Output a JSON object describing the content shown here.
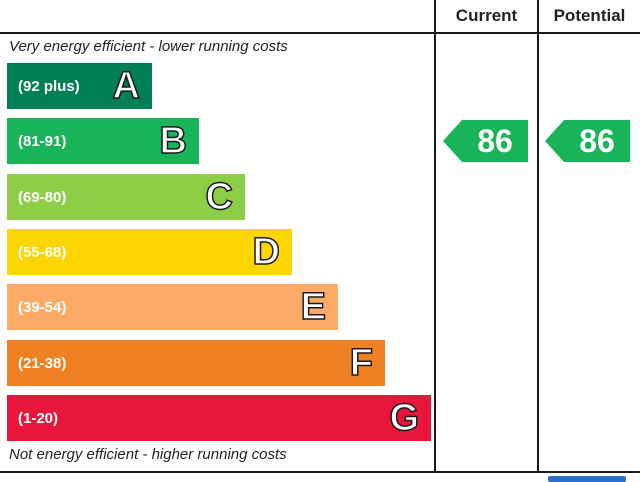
{
  "columns": {
    "current": "Current",
    "potential": "Potential"
  },
  "notes": {
    "top": "Very energy efficient - lower running costs",
    "bottom": "Not energy efficient - higher running costs"
  },
  "chart_data": {
    "type": "bar",
    "title": "",
    "categories": [
      "A",
      "B",
      "C",
      "D",
      "E",
      "F",
      "G"
    ],
    "ranges": [
      "(92 plus)",
      "(81-91)",
      "(69-80)",
      "(55-68)",
      "(39-54)",
      "(21-38)",
      "(1-20)"
    ],
    "values": [
      1,
      2,
      3,
      4,
      5,
      6,
      7
    ],
    "colors": [
      "#008054",
      "#19b459",
      "#8dce46",
      "#ffd500",
      "#fcaa65",
      "#ef8023",
      "#e9153b"
    ],
    "current": {
      "value": "86",
      "band": "B",
      "color": "#19b459"
    },
    "potential": {
      "value": "86",
      "band": "B",
      "color": "#19b459"
    }
  }
}
